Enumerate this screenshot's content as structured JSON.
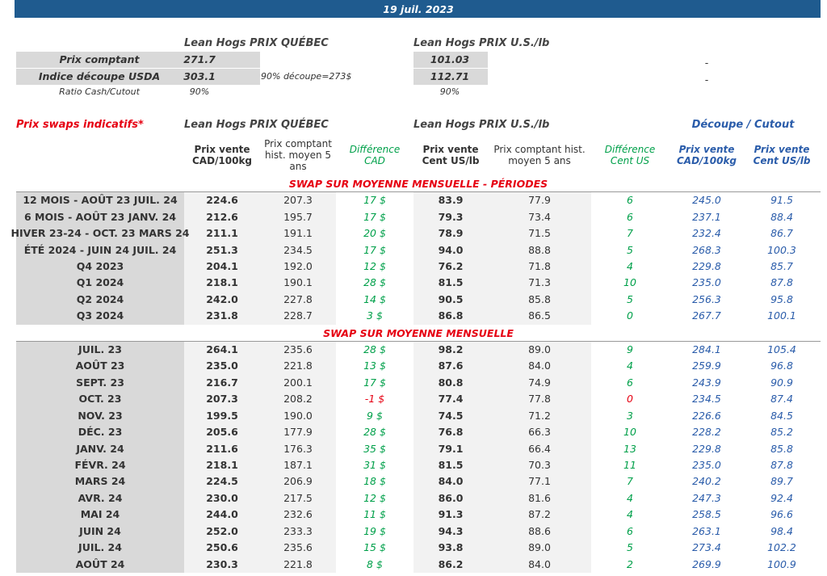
{
  "header": {
    "date": "19 juil. 2023"
  },
  "summary": {
    "quebec_title": "Lean Hogs PRIX QUÉBEC",
    "us_title": "Lean Hogs PRIX U.S./lb",
    "rows": [
      {
        "label": "Prix comptant",
        "quebec": "271.7",
        "us": "101.03",
        "cutout": "-"
      },
      {
        "label": "Indice découpe USDA",
        "quebec": "303.1",
        "note": "90% découpe=273$",
        "us": "112.71",
        "cutout": "-"
      },
      {
        "label": "Ratio Cash/Cutout",
        "quebec": "90%",
        "us": "90%"
      }
    ]
  },
  "swaps": {
    "title": "Prix swaps indicatifs*",
    "quebec_title": "Lean Hogs PRIX QUÉBEC",
    "us_title": "Lean Hogs PRIX U.S./lb",
    "cutout_title": "Découpe / Cutout",
    "columns": [
      [
        "Prix vente",
        "CAD/100kg"
      ],
      [
        "Prix comptant",
        "hist. moyen 5",
        "ans"
      ],
      [
        "Différence",
        "CAD"
      ],
      [
        "Prix vente",
        "Cent US/lb"
      ],
      [
        "Prix comptant hist.",
        "moyen 5 ans"
      ],
      [
        "Différence",
        "Cent US"
      ],
      [
        "Prix vente",
        "CAD/100kg"
      ],
      [
        "Prix vente",
        "Cent US/lb"
      ]
    ],
    "sections": [
      {
        "title": "SWAP SUR MOYENNE MENSUELLE - PÉRIODES",
        "rows": [
          {
            "label": "12 MOIS - AOÛT 23 JUIL. 24",
            "cells": [
              "224.6",
              "207.3",
              "17 $",
              "83.9",
              "77.9",
              "6",
              "245.0",
              "91.5"
            ]
          },
          {
            "label": "6 MOIS - AOÛT 23 JANV. 24",
            "cells": [
              "212.6",
              "195.7",
              "17 $",
              "79.3",
              "73.4",
              "6",
              "237.1",
              "88.4"
            ]
          },
          {
            "label": "HIVER 23-24 -  OCT. 23 MARS 24",
            "cells": [
              "211.1",
              "191.1",
              "20 $",
              "78.9",
              "71.5",
              "7",
              "232.4",
              "86.7"
            ]
          },
          {
            "label": "ÉTÉ 2024 - JUIN 24 JUIL. 24",
            "cells": [
              "251.3",
              "234.5",
              "17 $",
              "94.0",
              "88.8",
              "5",
              "268.3",
              "100.3"
            ]
          },
          {
            "label": "Q4 2023",
            "cells": [
              "204.1",
              "192.0",
              "12 $",
              "76.2",
              "71.8",
              "4",
              "229.8",
              "85.7"
            ]
          },
          {
            "label": "Q1 2024",
            "cells": [
              "218.1",
              "190.1",
              "28 $",
              "81.5",
              "71.3",
              "10",
              "235.0",
              "87.8"
            ]
          },
          {
            "label": "Q2 2024",
            "cells": [
              "242.0",
              "227.8",
              "14 $",
              "90.5",
              "85.8",
              "5",
              "256.3",
              "95.8"
            ]
          },
          {
            "label": "Q3 2024",
            "cells": [
              "231.8",
              "228.7",
              "3 $",
              "86.8",
              "86.5",
              "0",
              "267.7",
              "100.1"
            ]
          }
        ]
      },
      {
        "title": "SWAP SUR MOYENNE MENSUELLE",
        "rows": [
          {
            "label": "JUIL. 23",
            "cells": [
              "264.1",
              "235.6",
              "28 $",
              "98.2",
              "89.0",
              "9",
              "284.1",
              "105.4"
            ]
          },
          {
            "label": "AOÛT 23",
            "cells": [
              "235.0",
              "221.8",
              "13 $",
              "87.6",
              "84.0",
              "4",
              "259.9",
              "96.8"
            ]
          },
          {
            "label": "SEPT. 23",
            "cells": [
              "216.7",
              "200.1",
              "17 $",
              "80.8",
              "74.9",
              "6",
              "243.9",
              "90.9"
            ]
          },
          {
            "label": "OCT. 23",
            "cells": [
              "207.3",
              "208.2",
              "-1 $",
              "77.4",
              "77.8",
              "0",
              "234.5",
              "87.4"
            ]
          },
          {
            "label": "NOV. 23",
            "cells": [
              "199.5",
              "190.0",
              "9 $",
              "74.5",
              "71.2",
              "3",
              "226.6",
              "84.5"
            ]
          },
          {
            "label": "DÉC. 23",
            "cells": [
              "205.6",
              "177.9",
              "28 $",
              "76.8",
              "66.3",
              "10",
              "228.2",
              "85.2"
            ]
          },
          {
            "label": "JANV. 24",
            "cells": [
              "211.6",
              "176.3",
              "35 $",
              "79.1",
              "66.4",
              "13",
              "229.8",
              "85.8"
            ]
          },
          {
            "label": "FÉVR. 24",
            "cells": [
              "218.1",
              "187.1",
              "31 $",
              "81.5",
              "70.3",
              "11",
              "235.0",
              "87.8"
            ]
          },
          {
            "label": "MARS 24",
            "cells": [
              "224.5",
              "206.9",
              "18 $",
              "84.0",
              "77.1",
              "7",
              "240.2",
              "89.7"
            ]
          },
          {
            "label": "AVR. 24",
            "cells": [
              "230.0",
              "217.5",
              "12 $",
              "86.0",
              "81.6",
              "4",
              "247.3",
              "92.4"
            ]
          },
          {
            "label": "MAI 24",
            "cells": [
              "244.0",
              "232.6",
              "11 $",
              "91.3",
              "87.2",
              "4",
              "258.5",
              "96.6"
            ]
          },
          {
            "label": "JUIN 24",
            "cells": [
              "252.0",
              "233.3",
              "19 $",
              "94.3",
              "88.6",
              "6",
              "263.1",
              "98.4"
            ]
          },
          {
            "label": "JUIL. 24",
            "cells": [
              "250.6",
              "235.6",
              "15 $",
              "93.8",
              "89.0",
              "5",
              "273.4",
              "102.2"
            ]
          },
          {
            "label": "AOÛT 24",
            "cells": [
              "230.3",
              "221.8",
              "8 $",
              "86.2",
              "84.0",
              "2",
              "269.9",
              "100.9"
            ]
          }
        ]
      }
    ]
  }
}
